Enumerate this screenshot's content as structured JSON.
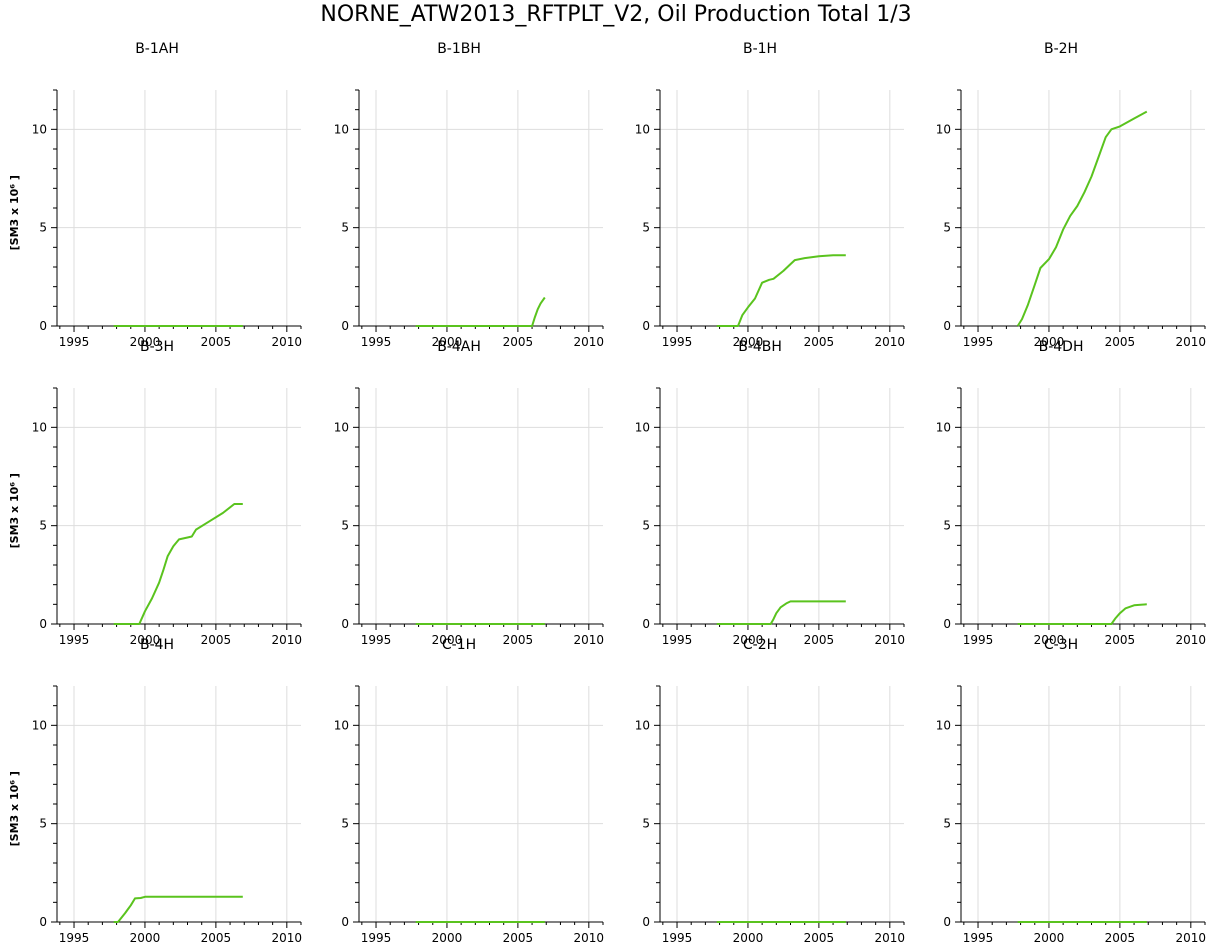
{
  "figure": {
    "title": "NORNE_ATW2013_RFTPLT_V2, Oil Production Total 1/3",
    "line_color": "#5ac31e",
    "grid_color": "#dddddd"
  },
  "chart_data": [
    {
      "type": "line",
      "title": "B-1AH",
      "ylabel": "[SM3 x 10⁶ ]",
      "xlim": [
        1993.8,
        2011
      ],
      "ylim": [
        0,
        12
      ],
      "xticks": [
        1995,
        2000,
        2005,
        2010
      ],
      "yticks": [
        0,
        5,
        10
      ],
      "grid": true,
      "series": [
        {
          "x": [
            1997.8,
            2006.9
          ],
          "y": [
            0,
            0
          ]
        }
      ]
    },
    {
      "type": "line",
      "title": "B-1BH",
      "ylabel": "",
      "xlim": [
        1993.8,
        2011
      ],
      "ylim": [
        0,
        12
      ],
      "xticks": [
        1995,
        2000,
        2005,
        2010
      ],
      "yticks": [
        0,
        5,
        10
      ],
      "grid": true,
      "series": [
        {
          "x": [
            1997.8,
            2006.0,
            2006.2,
            2006.4,
            2006.6,
            2006.9
          ],
          "y": [
            0,
            0,
            0.45,
            0.85,
            1.15,
            1.45
          ]
        }
      ]
    },
    {
      "type": "line",
      "title": "B-1H",
      "ylabel": "",
      "xlim": [
        1993.8,
        2011
      ],
      "ylim": [
        0,
        12
      ],
      "xticks": [
        1995,
        2000,
        2005,
        2010
      ],
      "yticks": [
        0,
        5,
        10
      ],
      "grid": true,
      "series": [
        {
          "x": [
            1997.8,
            1999.3,
            1999.6,
            2000.0,
            2000.5,
            2001.0,
            2001.5,
            2001.8,
            2002.5,
            2003.0,
            2003.3,
            2004.0,
            2005.0,
            2006.0,
            2006.9
          ],
          "y": [
            0,
            0,
            0.55,
            0.95,
            1.4,
            2.2,
            2.35,
            2.4,
            2.8,
            3.15,
            3.35,
            3.45,
            3.55,
            3.6,
            3.6
          ]
        }
      ]
    },
    {
      "type": "line",
      "title": "B-2H",
      "ylabel": "",
      "xlim": [
        1993.8,
        2011
      ],
      "ylim": [
        0,
        12
      ],
      "xticks": [
        1995,
        2000,
        2005,
        2010
      ],
      "yticks": [
        0,
        5,
        10
      ],
      "grid": true,
      "series": [
        {
          "x": [
            1997.8,
            1998.1,
            1998.5,
            1999.0,
            1999.4,
            2000.0,
            2000.5,
            2001.0,
            2001.5,
            2002.0,
            2002.5,
            2003.0,
            2003.5,
            2004.0,
            2004.4,
            2005.0,
            2006.0,
            2006.9
          ],
          "y": [
            0,
            0.35,
            1.05,
            2.1,
            2.95,
            3.4,
            4.0,
            4.9,
            5.6,
            6.1,
            6.8,
            7.6,
            8.6,
            9.6,
            10.0,
            10.15,
            10.55,
            10.9
          ]
        }
      ]
    },
    {
      "type": "line",
      "title": "B-3H",
      "ylabel": "[SM3 x 10⁶ ]",
      "xlim": [
        1993.8,
        2011
      ],
      "ylim": [
        0,
        12
      ],
      "xticks": [
        1995,
        2000,
        2005,
        2010
      ],
      "yticks": [
        0,
        5,
        10
      ],
      "grid": true,
      "series": [
        {
          "x": [
            1997.8,
            1999.6,
            2000.0,
            2000.5,
            2001.0,
            2001.3,
            2001.6,
            2002.0,
            2002.4,
            2003.0,
            2003.3,
            2003.6,
            2004.5,
            2005.5,
            2006.3,
            2006.9
          ],
          "y": [
            0,
            0,
            0.65,
            1.3,
            2.1,
            2.75,
            3.45,
            3.95,
            4.3,
            4.4,
            4.45,
            4.8,
            5.2,
            5.65,
            6.1,
            6.1
          ]
        }
      ]
    },
    {
      "type": "line",
      "title": "B-4AH",
      "ylabel": "",
      "xlim": [
        1993.8,
        2011
      ],
      "ylim": [
        0,
        12
      ],
      "xticks": [
        1995,
        2000,
        2005,
        2010
      ],
      "yticks": [
        0,
        5,
        10
      ],
      "grid": true,
      "series": [
        {
          "x": [
            1997.8,
            2006.9
          ],
          "y": [
            0,
            0
          ]
        }
      ]
    },
    {
      "type": "line",
      "title": "B-4BH",
      "ylabel": "",
      "xlim": [
        1993.8,
        2011
      ],
      "ylim": [
        0,
        12
      ],
      "xticks": [
        1995,
        2000,
        2005,
        2010
      ],
      "yticks": [
        0,
        5,
        10
      ],
      "grid": true,
      "series": [
        {
          "x": [
            1997.8,
            2001.6,
            2001.8,
            2002.0,
            2002.3,
            2002.7,
            2003.0,
            2006.9
          ],
          "y": [
            0,
            0,
            0.25,
            0.55,
            0.85,
            1.05,
            1.15,
            1.15
          ]
        }
      ]
    },
    {
      "type": "line",
      "title": "B-4DH",
      "ylabel": "",
      "xlim": [
        1993.8,
        2011
      ],
      "ylim": [
        0,
        12
      ],
      "xticks": [
        1995,
        2000,
        2005,
        2010
      ],
      "yticks": [
        0,
        5,
        10
      ],
      "grid": true,
      "series": [
        {
          "x": [
            1997.8,
            2004.4,
            2004.7,
            2005.0,
            2005.4,
            2006.0,
            2006.9
          ],
          "y": [
            0,
            0,
            0.3,
            0.55,
            0.8,
            0.95,
            1.0
          ]
        }
      ]
    },
    {
      "type": "line",
      "title": "B-4H",
      "ylabel": "[SM3 x 10⁶ ]",
      "xlim": [
        1993.8,
        2011
      ],
      "ylim": [
        0,
        12
      ],
      "xticks": [
        1995,
        2000,
        2005,
        2010
      ],
      "yticks": [
        0,
        5,
        10
      ],
      "grid": true,
      "series": [
        {
          "x": [
            1997.8,
            1998.1,
            1998.6,
            1999.0,
            1999.3,
            1999.7,
            2000.0,
            2006.9
          ],
          "y": [
            0,
            0,
            0.45,
            0.85,
            1.2,
            1.22,
            1.28,
            1.28
          ]
        }
      ]
    },
    {
      "type": "line",
      "title": "C-1H",
      "ylabel": "",
      "xlim": [
        1993.8,
        2011
      ],
      "ylim": [
        0,
        12
      ],
      "xticks": [
        1995,
        2000,
        2005,
        2010
      ],
      "yticks": [
        0,
        5,
        10
      ],
      "grid": true,
      "series": [
        {
          "x": [
            1997.8,
            2006.9
          ],
          "y": [
            0,
            0
          ]
        }
      ]
    },
    {
      "type": "line",
      "title": "C-2H",
      "ylabel": "",
      "xlim": [
        1993.8,
        2011
      ],
      "ylim": [
        0,
        12
      ],
      "xticks": [
        1995,
        2000,
        2005,
        2010
      ],
      "yticks": [
        0,
        5,
        10
      ],
      "grid": true,
      "series": [
        {
          "x": [
            1997.8,
            2006.9
          ],
          "y": [
            0,
            0
          ]
        }
      ]
    },
    {
      "type": "line",
      "title": "C-3H",
      "ylabel": "",
      "xlim": [
        1993.8,
        2011
      ],
      "ylim": [
        0,
        12
      ],
      "xticks": [
        1995,
        2000,
        2005,
        2010
      ],
      "yticks": [
        0,
        5,
        10
      ],
      "grid": true,
      "series": [
        {
          "x": [
            1997.8,
            2006.9
          ],
          "y": [
            0,
            0
          ]
        }
      ]
    }
  ]
}
